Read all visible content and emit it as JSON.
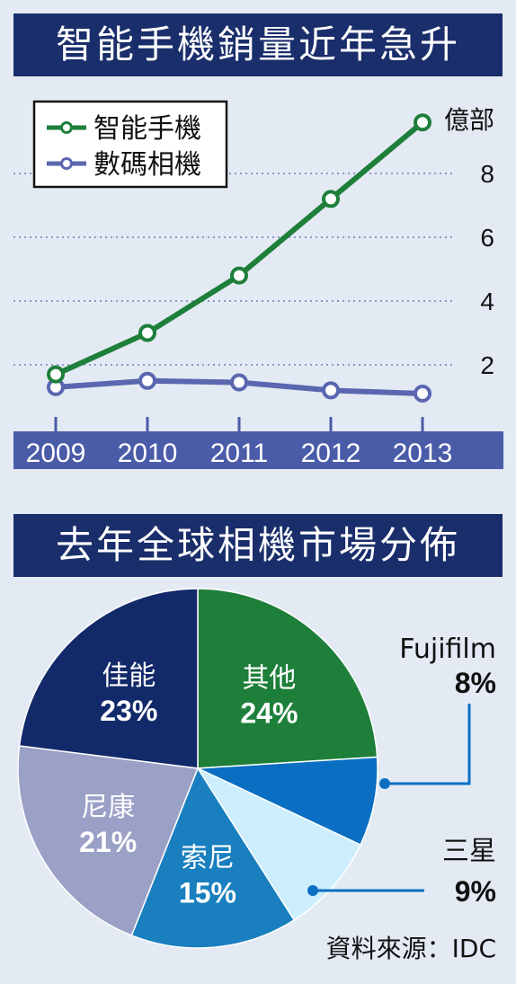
{
  "line_panel": {
    "title": "智能手機銷量近年急升"
  },
  "pie_panel": {
    "title": "去年全球相機市場分佈"
  },
  "source": "資料來源：IDC",
  "colors": {
    "banner": "#1a2e6b",
    "smartphone": "#1e7f3a",
    "camera": "#5a67b0",
    "background": "#e4eaf4"
  },
  "chart_data": [
    {
      "type": "line",
      "title": "智能手機銷量近年急升",
      "x": [
        "2009",
        "2010",
        "2011",
        "2012",
        "2013"
      ],
      "ylabel": "億部",
      "yticks": [
        "2",
        "4",
        "6",
        "8"
      ],
      "ylim": [
        0,
        9.5
      ],
      "grid": true,
      "legend_position": "top-left",
      "series": [
        {
          "name": "智能手機",
          "color": "#1e7f3a",
          "values": [
            1.7,
            3.0,
            4.8,
            7.2,
            9.6
          ]
        },
        {
          "name": "數碼相機",
          "color": "#5a67b0",
          "values": [
            1.3,
            1.5,
            1.45,
            1.2,
            1.1
          ]
        }
      ]
    },
    {
      "type": "pie",
      "title": "去年全球相機市場分佈",
      "slices": [
        {
          "label": "其他",
          "value": 24,
          "pct_text": "24%",
          "color": "#1e7f3a",
          "label_inside": true
        },
        {
          "label": "Fujifilm",
          "value": 8,
          "pct_text": "8%",
          "color": "#0a6fc2",
          "label_inside": false
        },
        {
          "label": "三星",
          "value": 9,
          "pct_text": "9%",
          "color": "#cdeefc",
          "label_inside": false
        },
        {
          "label": "索尼",
          "value": 15,
          "pct_text": "15%",
          "color": "#1a7fbf",
          "label_inside": true
        },
        {
          "label": "尼康",
          "value": 21,
          "pct_text": "21%",
          "color": "#9aa0c6",
          "label_inside": true
        },
        {
          "label": "佳能",
          "value": 23,
          "pct_text": "23%",
          "color": "#122a6a",
          "label_inside": true
        }
      ]
    }
  ]
}
